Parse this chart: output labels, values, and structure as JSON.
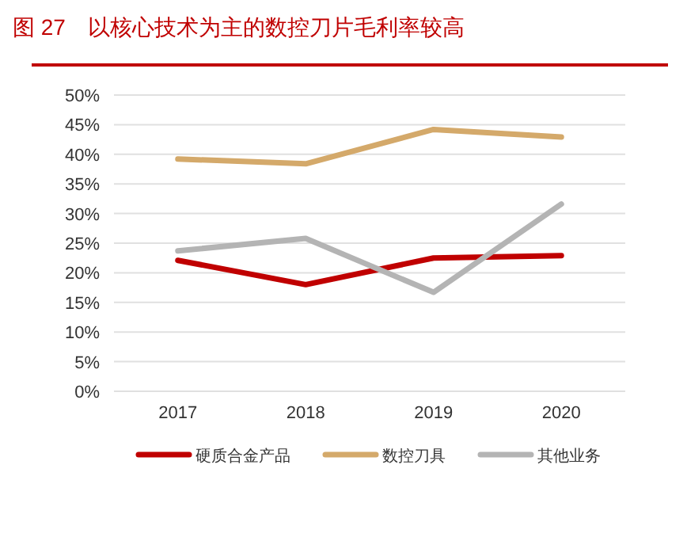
{
  "chart_data": {
    "type": "line",
    "title": "图 27　以核心技术为主的数控刀片毛利率较高",
    "categories": [
      "2017",
      "2018",
      "2019",
      "2020"
    ],
    "series": [
      {
        "name": "硬质合金产品",
        "color": "#c00000",
        "values": [
          22.1,
          18.0,
          22.5,
          22.9
        ]
      },
      {
        "name": "数控刀具",
        "color": "#d4a96a",
        "values": [
          39.2,
          38.4,
          44.2,
          42.9
        ]
      },
      {
        "name": "其他业务",
        "color": "#b4b4b4",
        "values": [
          23.7,
          25.8,
          16.7,
          31.6
        ]
      }
    ],
    "ylim": [
      0,
      50
    ],
    "yticks": [
      {
        "value": 0,
        "label": "0%"
      },
      {
        "value": 5,
        "label": "5%"
      },
      {
        "value": 10,
        "label": "10%"
      },
      {
        "value": 15,
        "label": "15%"
      },
      {
        "value": 20,
        "label": "20%"
      },
      {
        "value": 25,
        "label": "25%"
      },
      {
        "value": 30,
        "label": "30%"
      },
      {
        "value": 35,
        "label": "35%"
      },
      {
        "value": 40,
        "label": "40%"
      },
      {
        "value": 45,
        "label": "45%"
      },
      {
        "value": 50,
        "label": "50%"
      }
    ],
    "grid": "y",
    "legend": "bottom",
    "line_style": "solid"
  }
}
